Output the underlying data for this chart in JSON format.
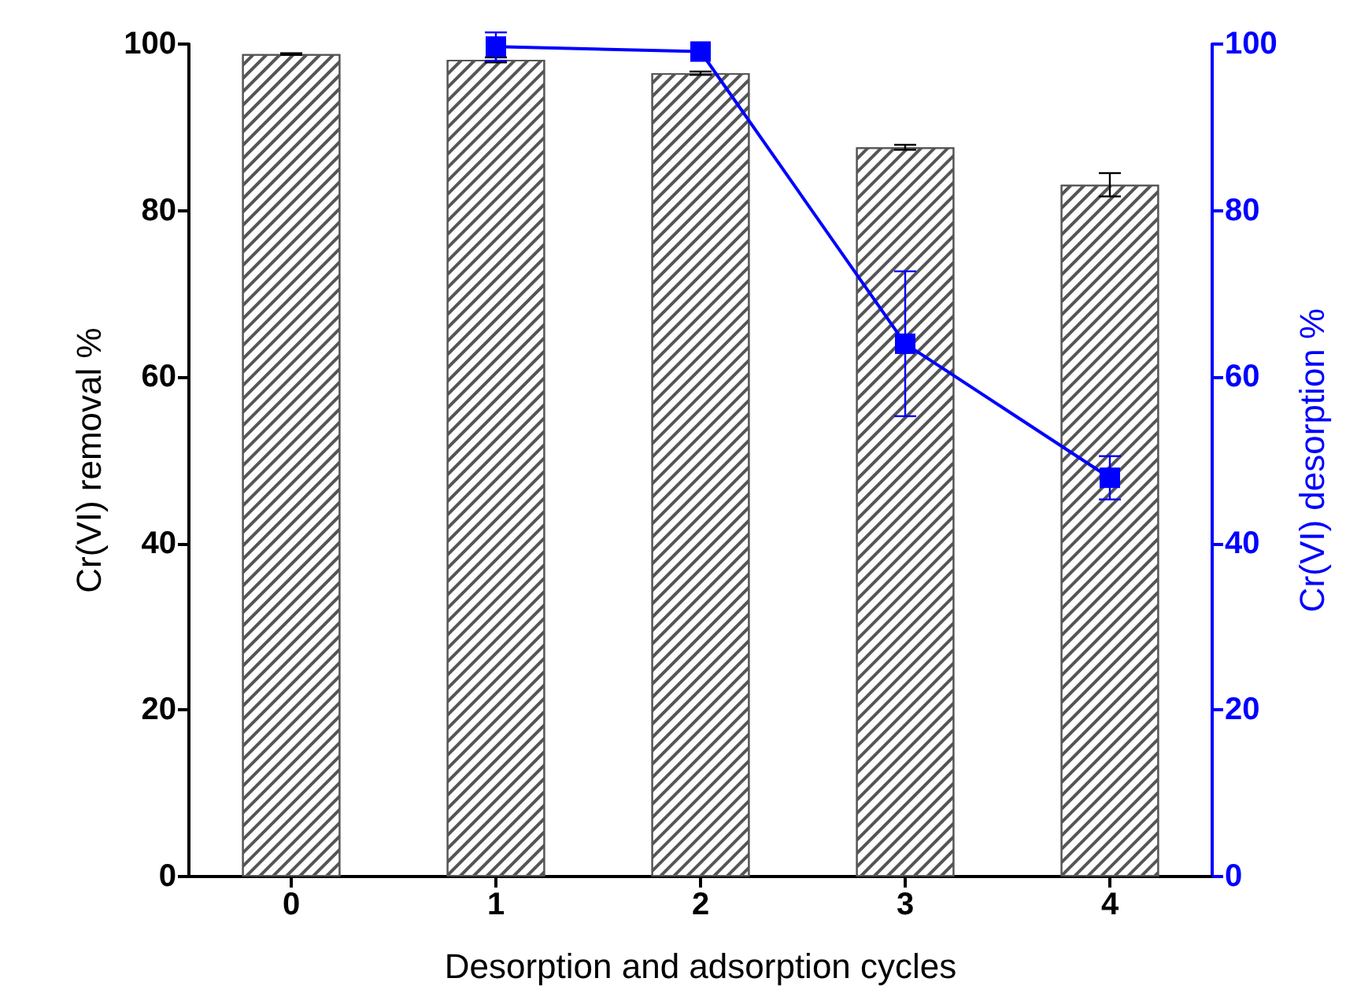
{
  "chart_data": {
    "type": "bar",
    "xlabel": "Desorption and adsorption cycles",
    "ylabel": "Cr(VI) removal %",
    "y2label": "Cr(VI) desorption %",
    "categories": [
      "0",
      "1",
      "2",
      "3",
      "4"
    ],
    "series": [
      {
        "color": "#555555",
        "values": [
          98.8,
          98.1,
          96.5,
          87.6,
          83.1
        ],
        "errors": [
          0.1,
          0.3,
          0.2,
          0.3,
          1.4
        ]
      },
      {
        "type": "line",
        "axis": "y2",
        "color": "#0000ff",
        "values": [
          null,
          99.7,
          99.1,
          64.0,
          47.9
        ],
        "errors": [
          null,
          1.7,
          null,
          8.7,
          2.6
        ]
      }
    ],
    "ylim": [
      0,
      100
    ],
    "yticks": [
      0,
      20,
      40,
      60,
      80,
      100
    ],
    "y2lim": [
      0,
      100
    ],
    "y2ticks": [
      0,
      20,
      40,
      60,
      80,
      100
    ],
    "marker": "square",
    "line_style": "solid",
    "grid": false
  }
}
